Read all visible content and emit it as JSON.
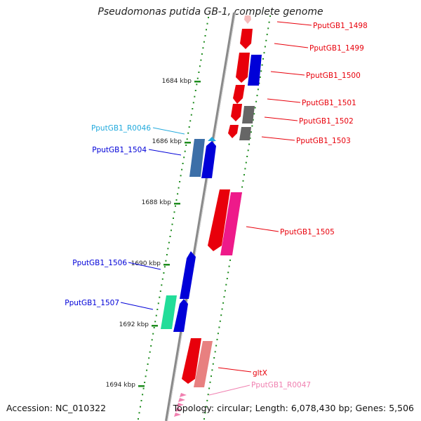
{
  "title": "Pseudomonas putida GB-1, complete genome",
  "footer": {
    "accession": "Accession: NC_010322",
    "topology": "Topology: circular; Length: 6,078,430 bp; Genes: 5,506"
  },
  "ruler": {
    "ticks": [
      "1684 kbp",
      "1686 kbp",
      "1688 kbp",
      "1690 kbp",
      "1692 kbp",
      "1694 kbp"
    ]
  },
  "colors": {
    "red": "#e8000b",
    "blue": "#0000d8",
    "steelblue": "#3c6fa8",
    "cyan": "#22aadd",
    "gray": "#666666",
    "magenta": "#ee1a8a",
    "salmon": "#e88080",
    "teal": "#22dd99",
    "pink": "#f080b0",
    "backbone": "#888888",
    "tick_green": "#1e8c1e"
  },
  "genes": [
    {
      "label": "PputGB1_1498",
      "color": "red"
    },
    {
      "label": "PputGB1_1499",
      "color": "red"
    },
    {
      "label": "PputGB1_1500",
      "color": "red"
    },
    {
      "label": "PputGB1_1501",
      "color": "red"
    },
    {
      "label": "PputGB1_1502",
      "color": "red"
    },
    {
      "label": "PputGB1_1503",
      "color": "red"
    },
    {
      "label": "PputGB1_R0046",
      "color": "cyan"
    },
    {
      "label": "PputGB1_1504",
      "color": "blue"
    },
    {
      "label": "PputGB1_1505",
      "color": "red"
    },
    {
      "label": "PputGB1_1506",
      "color": "blue"
    },
    {
      "label": "PputGB1_1507",
      "color": "blue"
    },
    {
      "label": "gltX",
      "color": "red"
    },
    {
      "label": "PputGB1_R0047",
      "color": "pink"
    }
  ]
}
